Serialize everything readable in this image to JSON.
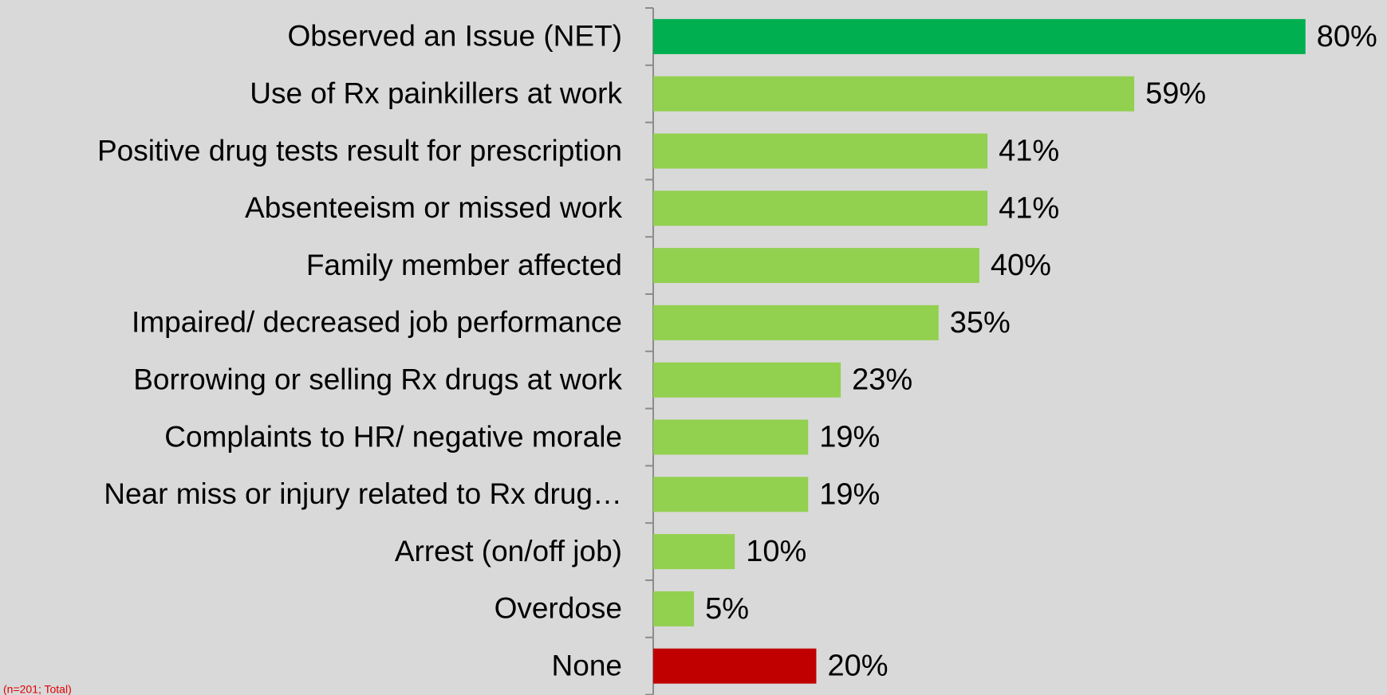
{
  "chart_data": {
    "type": "bar",
    "orientation": "horizontal",
    "categories": [
      "Observed an Issue (NET)",
      "Use of Rx painkillers at work",
      "Positive drug tests result for prescription",
      "Absenteeism or missed work",
      "Family member affected",
      "Impaired/ decreased job performance",
      "Borrowing or selling Rx drugs at work",
      "Complaints to HR/ negative morale",
      "Near miss or injury related to Rx drug…",
      "Arrest (on/off job)",
      "Overdose",
      "None"
    ],
    "values": [
      80,
      59,
      41,
      41,
      40,
      35,
      23,
      19,
      19,
      10,
      5,
      20
    ],
    "value_labels": [
      "80%",
      "59%",
      "41%",
      "41%",
      "40%",
      "35%",
      "23%",
      "19%",
      "19%",
      "10%",
      "5%",
      "20%"
    ],
    "colors": [
      "#00b050",
      "#92d050",
      "#92d050",
      "#92d050",
      "#92d050",
      "#92d050",
      "#92d050",
      "#92d050",
      "#92d050",
      "#92d050",
      "#92d050",
      "#c00000"
    ],
    "xlim": [
      0,
      90
    ],
    "note": "(n=201; Total)"
  }
}
